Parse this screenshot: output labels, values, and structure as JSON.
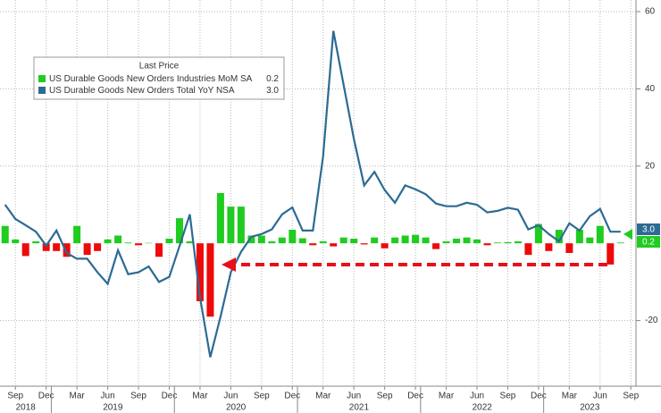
{
  "chart_data": {
    "type": "bar_line",
    "legend_title": "Last Price",
    "xlim": [
      "2018-08",
      "2023-09"
    ],
    "x": [
      "2018-08",
      "2018-09",
      "2018-10",
      "2018-11",
      "2018-12",
      "2019-01",
      "2019-02",
      "2019-03",
      "2019-04",
      "2019-05",
      "2019-06",
      "2019-07",
      "2019-08",
      "2019-09",
      "2019-10",
      "2019-11",
      "2019-12",
      "2020-01",
      "2020-02",
      "2020-03",
      "2020-04",
      "2020-05",
      "2020-06",
      "2020-07",
      "2020-08",
      "2020-09",
      "2020-10",
      "2020-11",
      "2020-12",
      "2021-01",
      "2021-02",
      "2021-03",
      "2021-04",
      "2021-05",
      "2021-06",
      "2021-07",
      "2021-08",
      "2021-09",
      "2021-10",
      "2021-11",
      "2021-12",
      "2022-01",
      "2022-02",
      "2022-03",
      "2022-04",
      "2022-05",
      "2022-06",
      "2022-07",
      "2022-08",
      "2022-09",
      "2022-10",
      "2022-11",
      "2022-12",
      "2023-01",
      "2023-02",
      "2023-03",
      "2023-04",
      "2023-05",
      "2023-06",
      "2023-07",
      "2023-08"
    ],
    "series": [
      {
        "name": "US Durable Goods New Orders Industries MoM SA",
        "last_label": "0.2",
        "kind": "bar",
        "color": "#1fcc1f",
        "negative_color": "#ee0a0a",
        "values": [
          4.5,
          1.0,
          -3.3,
          0.5,
          -2,
          -2,
          -3.5,
          4.5,
          -3,
          -2,
          1,
          2,
          0.2,
          -0.5,
          0.1,
          -3.5,
          1.2,
          6.5,
          0.5,
          -15,
          -19,
          13,
          9.5,
          9.5,
          2,
          2,
          0.5,
          1.5,
          3.5,
          1.3,
          -0.5,
          0.5,
          -0.8,
          1.5,
          1.2,
          -0.3,
          1.5,
          -1.3,
          1.5,
          2,
          2.2,
          1.5,
          -1.5,
          0.5,
          1.2,
          1.5,
          1,
          -0.5,
          0.2,
          0.3,
          0.5,
          -3,
          5,
          -2,
          3.5,
          -2.5,
          3.5,
          1.5,
          4.5,
          -5.5,
          0.2
        ]
      },
      {
        "name": "US Durable Goods New Orders Total YoY NSA",
        "last_label": "3.0",
        "kind": "line",
        "color": "#2c6b94",
        "values": [
          10,
          6.3,
          4.7,
          3,
          -0.6,
          3.3,
          -2.5,
          -4,
          -4,
          -7.5,
          -10.5,
          -1.8,
          -8,
          -7.5,
          -6,
          -10,
          -8.7,
          -0.7,
          7.5,
          -14,
          -29.5,
          -19,
          -7.5,
          -2.2,
          1.7,
          2.4,
          3.6,
          7.5,
          9.3,
          3.3,
          3.3,
          22.5,
          55,
          41,
          27,
          15,
          18.5,
          13.8,
          10.5,
          15,
          14,
          12.7,
          10.3,
          9.6,
          9.6,
          10.5,
          10,
          8,
          8.4,
          9.2,
          8.7,
          3.6,
          4.7,
          2.4,
          0.5,
          5.2,
          3.3,
          7,
          8.9,
          3.0,
          3.0
        ]
      }
    ],
    "ylim": [
      -37,
      63
    ],
    "yticks": [
      -20,
      20,
      40,
      60
    ],
    "xticks": [
      {
        "value": "2018-09",
        "label": "Sep"
      },
      {
        "value": "2018-12",
        "label": "Dec"
      },
      {
        "value": "2019-03",
        "label": "Mar"
      },
      {
        "value": "2019-06",
        "label": "Jun"
      },
      {
        "value": "2019-09",
        "label": "Sep"
      },
      {
        "value": "2019-12",
        "label": "Dec"
      },
      {
        "value": "2020-03",
        "label": "Mar"
      },
      {
        "value": "2020-06",
        "label": "Jun"
      },
      {
        "value": "2020-09",
        "label": "Sep"
      },
      {
        "value": "2020-12",
        "label": "Dec"
      },
      {
        "value": "2021-03",
        "label": "Mar"
      },
      {
        "value": "2021-06",
        "label": "Jun"
      },
      {
        "value": "2021-09",
        "label": "Sep"
      },
      {
        "value": "2021-12",
        "label": "Dec"
      },
      {
        "value": "2022-03",
        "label": "Mar"
      },
      {
        "value": "2022-06",
        "label": "Jun"
      },
      {
        "value": "2022-09",
        "label": "Sep"
      },
      {
        "value": "2022-12",
        "label": "Dec"
      },
      {
        "value": "2023-03",
        "label": "Mar"
      },
      {
        "value": "2023-06",
        "label": "Jun"
      },
      {
        "value": "2023-09",
        "label": "Sep"
      }
    ],
    "x_year_labels": [
      2018,
      2019,
      2020,
      2021,
      2022,
      2023
    ],
    "grid": true
  }
}
